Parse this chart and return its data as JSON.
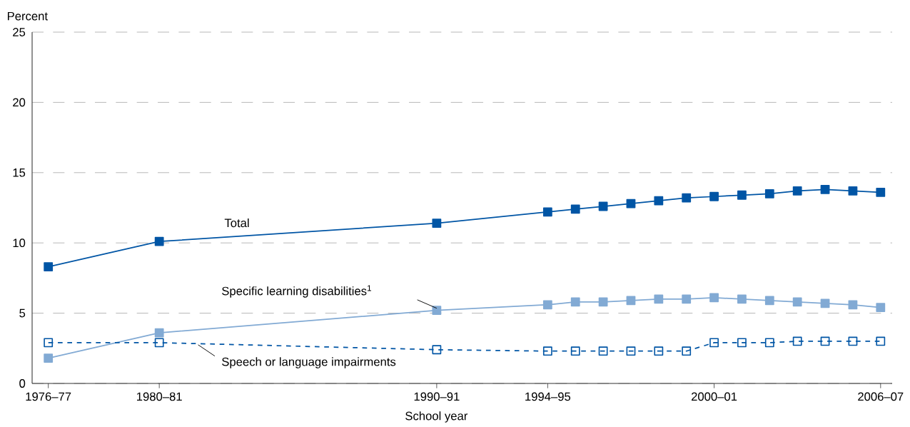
{
  "chart_data": {
    "type": "line",
    "xlabel": "School year",
    "ylabel": "Percent",
    "x": [
      "1976",
      "1980",
      "1990",
      "1994",
      "1995",
      "1996",
      "1997",
      "1998",
      "1999",
      "2000",
      "2001",
      "2002",
      "2003",
      "2004",
      "2005",
      "2006"
    ],
    "series": [
      {
        "name": "Total",
        "color": "#0055a5",
        "line_style": "solid",
        "values": [
          8.3,
          10.1,
          11.4,
          12.2,
          12.4,
          12.6,
          12.8,
          13.0,
          13.2,
          13.3,
          13.4,
          13.5,
          13.7,
          13.8,
          13.7,
          13.6
        ]
      },
      {
        "name": "Specific learning disabilities$^{1}$",
        "color": "#82aad4",
        "line_style": "solid",
        "values": [
          1.8,
          3.6,
          5.2,
          5.6,
          5.8,
          5.8,
          5.9,
          6.0,
          6.0,
          6.1,
          6.0,
          5.9,
          5.8,
          5.7,
          5.6,
          5.4
        ]
      },
      {
        "name": "Speech or language impairments",
        "color": "#0055a5",
        "line_style": "dashed",
        "values": [
          2.9,
          2.9,
          2.4,
          2.3,
          2.3,
          2.3,
          2.3,
          2.3,
          2.3,
          2.9,
          2.9,
          2.9,
          3.0,
          3.0,
          3.0,
          3.0
        ]
      }
    ],
    "xlim": [
      "1975-06",
      "2006-06"
    ],
    "ylim": [
      0,
      25
    ],
    "xticks": [
      {
        "value": "1976",
        "label": "1976–77"
      },
      {
        "value": "1980",
        "label": "1980–81"
      },
      {
        "value": "1990",
        "label": "1990–91"
      },
      {
        "value": "1994",
        "label": "1994–95"
      },
      {
        "value": "2000",
        "label": "2000–01"
      },
      {
        "value": "2006",
        "label": "2006–07"
      }
    ],
    "yticks": [
      0,
      5,
      10,
      15,
      20,
      25
    ],
    "grid": "y",
    "marker": "square"
  }
}
